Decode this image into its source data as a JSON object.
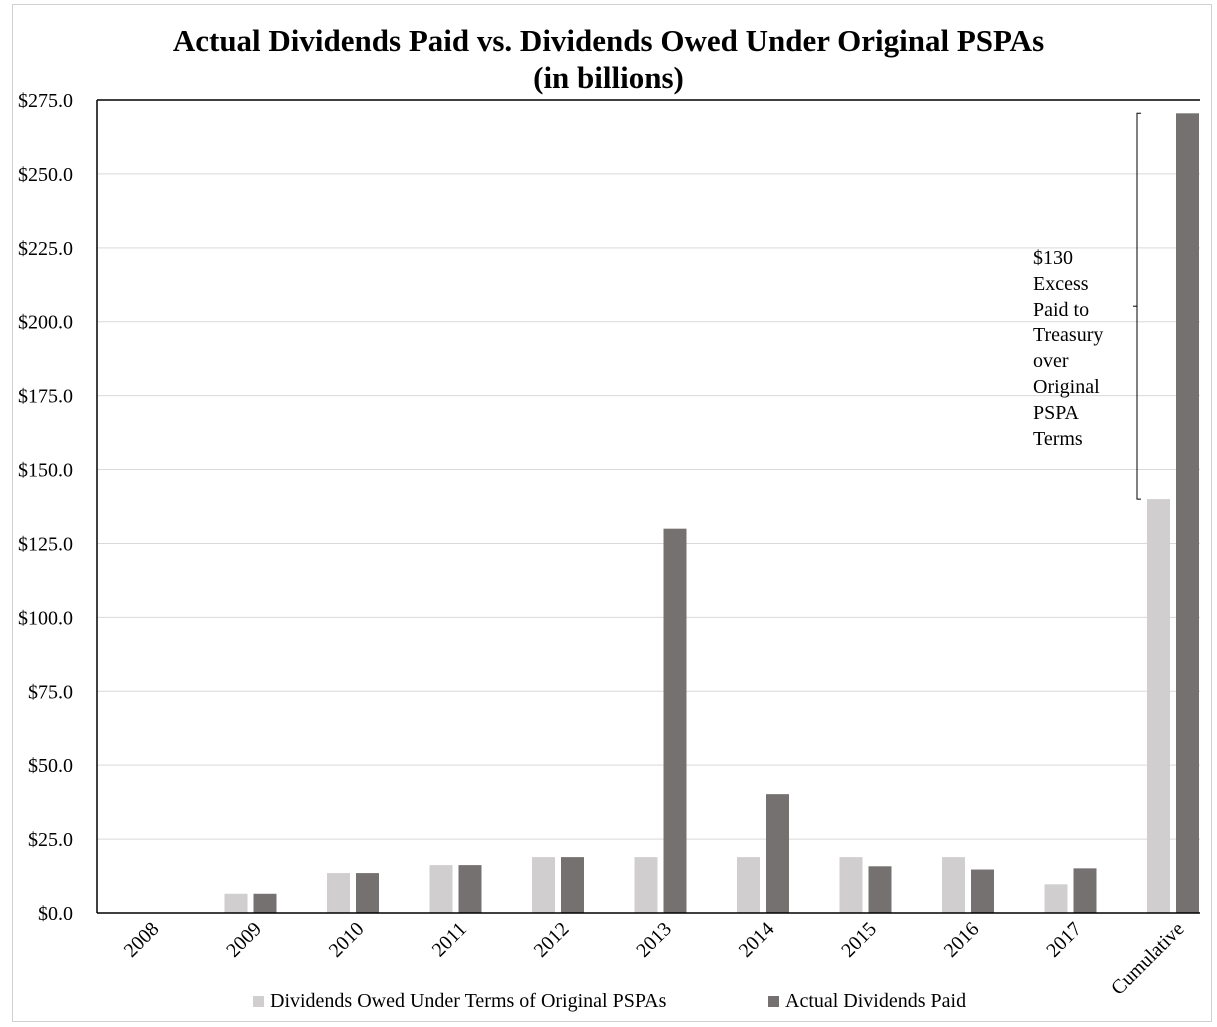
{
  "title_line1": "Actual Dividends Paid vs. Dividends Owed Under Original PSPAs",
  "title_line2": "(in billions)",
  "chart_data": {
    "type": "bar",
    "categories": [
      "2008",
      "2009",
      "2010",
      "2011",
      "2012",
      "2013",
      "2014",
      "2015",
      "2016",
      "2017",
      "Cumulative"
    ],
    "series": [
      {
        "name": "Dividends Owed Under Terms of Original PSPAs",
        "color": "#d0cece",
        "values": [
          0.0,
          6.5,
          13.5,
          16.2,
          18.9,
          18.9,
          18.9,
          18.9,
          18.9,
          9.7,
          140.0
        ]
      },
      {
        "name": "Actual Dividends Paid",
        "color": "#757171",
        "values": [
          0.0,
          6.5,
          13.5,
          16.2,
          18.9,
          130.0,
          40.2,
          15.8,
          14.7,
          15.1,
          270.5
        ]
      }
    ],
    "ylim": [
      0,
      275
    ],
    "yticks": [
      0,
      25,
      50,
      75,
      100,
      125,
      150,
      175,
      200,
      225,
      250,
      275
    ],
    "ytick_labels": [
      "$0.0",
      "$25.0",
      "$50.0",
      "$75.0",
      "$100.0",
      "$125.0",
      "$150.0",
      "$175.0",
      "$200.0",
      "$225.0",
      "$250.0",
      "$275.0"
    ],
    "grid": true,
    "legend_position": "bottom",
    "annotation": {
      "text_lines": [
        "$130",
        "Excess",
        "Paid to",
        "Treasury",
        "over",
        "Original",
        "PSPA",
        "Terms"
      ],
      "bracket_from": 140.0,
      "bracket_to": 270.5
    }
  }
}
